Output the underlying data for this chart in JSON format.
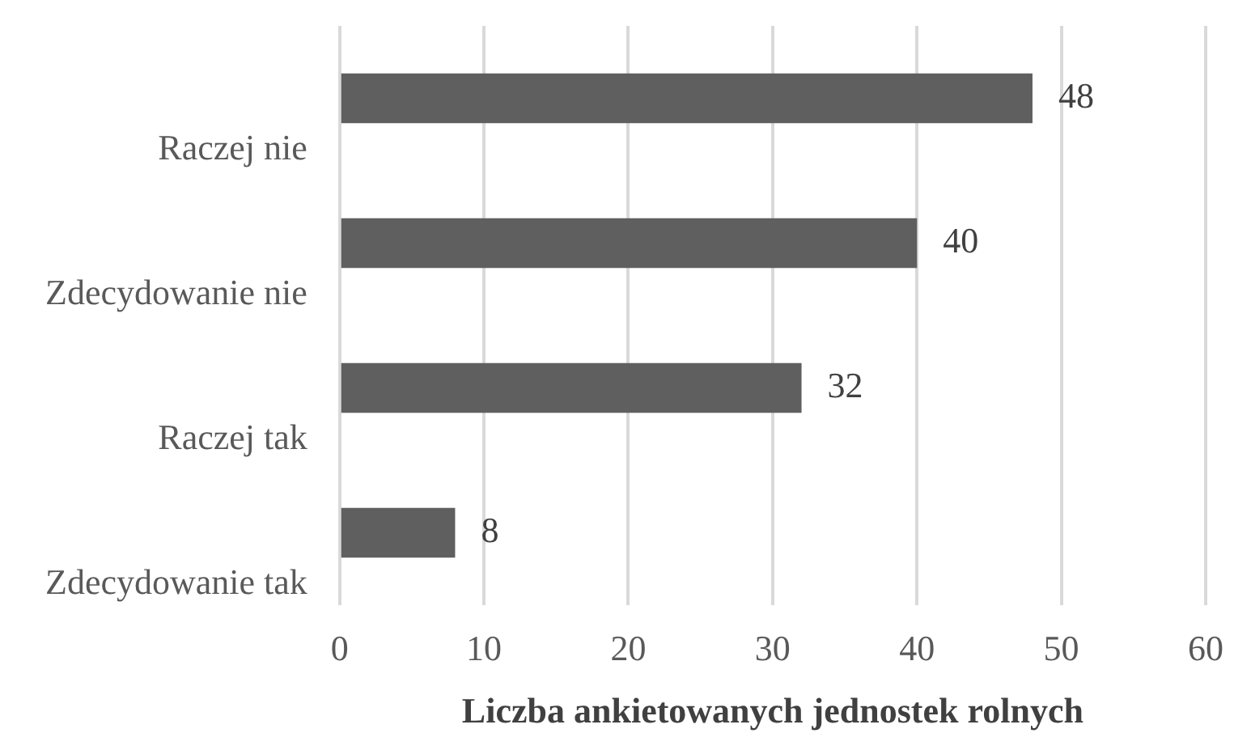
{
  "chart_data": {
    "type": "bar",
    "orientation": "horizontal",
    "categories": [
      "Raczej nie",
      "Zdecydowanie nie",
      "Raczej tak",
      "Zdecydowanie tak"
    ],
    "values": [
      48,
      40,
      32,
      8
    ],
    "color": "#5f5f5f",
    "xlabel": "Liczba ankietowanych jednostek rolnych",
    "xlim": [
      0,
      60
    ],
    "xticks": [
      0,
      10,
      20,
      30,
      40,
      50,
      60
    ],
    "grid": "x",
    "data_labels": true
  }
}
